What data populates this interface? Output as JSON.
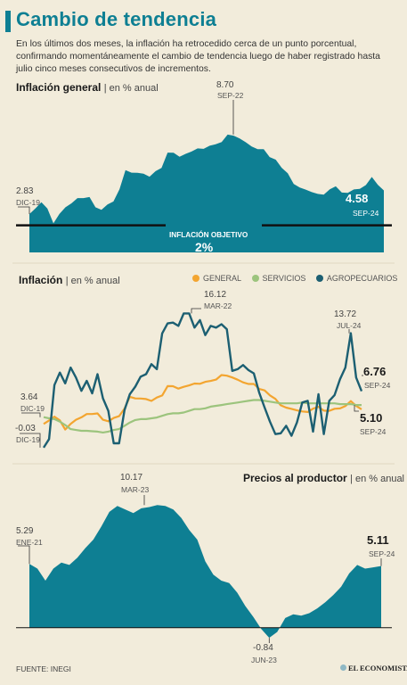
{
  "header": {
    "title": "Cambio de tendencia",
    "intro": "En los últimos dos meses, la inflación ha retrocedido cerca de un punto porcentual, confirmando momentáneamente el cambio de tendencia luego de haber registrado hasta julio cinco meses consecutivos de incrementos."
  },
  "chart1": {
    "title": "Inflación general",
    "unit": "| en % anual",
    "target_label": "INFLACIÓN OBJETIVO",
    "target_value": "2%",
    "annotations": {
      "start_value": "2.83",
      "start_date": "DIC-19",
      "peak_value": "8.70",
      "peak_date": "SEP-22",
      "last_value": "4.58",
      "last_date": "SEP-24"
    }
  },
  "chart2": {
    "title": "Inflación",
    "unit": "| en % anual",
    "legend": [
      "GENERAL",
      "SERVICIOS",
      "AGROPECUARIOS"
    ],
    "annotations": {
      "agro_start_value": "-0.03",
      "agro_start_date": "DIC-19",
      "serv_start_value": "3.64",
      "serv_start_date": "DIC-19",
      "agro_peak_value": "16.12",
      "agro_peak_date": "MAR-22",
      "agro_jul_value": "13.72",
      "agro_jul_date": "JUL-24",
      "agro_last_value": "6.76",
      "agro_last_date": "SEP-24",
      "serv_last_value": "5.10",
      "serv_last_date": "SEP-24"
    }
  },
  "chart3": {
    "title": "Precios al productor",
    "unit": "| en % anual",
    "annotations": {
      "start_value": "5.29",
      "start_date": "ENE-21",
      "peak_value": "10.17",
      "peak_date": "MAR-23",
      "min_value": "-0.84",
      "min_date": "JUN-23",
      "last_value": "5.11",
      "last_date": "SEP-24"
    }
  },
  "footer": {
    "source": "FUENTE: INEGI",
    "brand": "EL ECONOMISTA"
  },
  "colors": {
    "teal": "#0e7f93",
    "dark_teal": "#1c5f72",
    "orange": "#f3a530",
    "green": "#9cc47d",
    "background": "#f2ecdb"
  },
  "chart_data": [
    {
      "type": "area",
      "title": "Inflación general",
      "ylabel": "en % anual",
      "reference_line": {
        "label": "INFLACIÓN OBJETIVO",
        "value": 2
      },
      "x_start": "DIC-19",
      "x_end": "SEP-24",
      "series": [
        {
          "name": "Inflación general",
          "values": [
            2.83,
            3.24,
            3.7,
            3.25,
            2.15,
            2.84,
            3.33,
            3.62,
            4.01,
            4.01,
            4.09,
            3.33,
            3.15,
            3.54,
            3.76,
            4.67,
            6.08,
            5.89,
            5.88,
            5.81,
            5.59,
            6.0,
            6.24,
            7.37,
            7.36,
            7.07,
            7.28,
            7.45,
            7.68,
            7.65,
            7.88,
            7.99,
            8.15,
            8.7,
            8.62,
            8.41,
            8.14,
            7.82,
            7.62,
            7.62,
            7.04,
            6.85,
            6.25,
            5.84,
            5.06,
            4.79,
            4.64,
            4.45,
            4.32,
            4.26,
            4.66,
            4.88,
            4.42,
            4.4,
            4.65,
            4.69,
            4.97,
            5.57,
            4.99,
            4.58
          ]
        }
      ],
      "ylim": [
        0,
        11
      ]
    },
    {
      "type": "line",
      "title": "Inflación",
      "ylabel": "en % anual",
      "x_start": "DIC-19",
      "x_end": "SEP-24",
      "series": [
        {
          "name": "GENERAL",
          "values": [
            2.83,
            3.24,
            3.7,
            3.25,
            2.15,
            2.84,
            3.33,
            3.62,
            4.01,
            4.01,
            4.09,
            3.33,
            3.15,
            3.54,
            3.76,
            4.67,
            6.08,
            5.89,
            5.88,
            5.81,
            5.59,
            6.0,
            6.24,
            7.37,
            7.36,
            7.07,
            7.28,
            7.45,
            7.68,
            7.65,
            7.88,
            7.99,
            8.15,
            8.7,
            8.62,
            8.41,
            8.14,
            7.82,
            7.62,
            7.62,
            7.04,
            6.85,
            6.25,
            5.84,
            5.06,
            4.79,
            4.64,
            4.45,
            4.32,
            4.26,
            4.66,
            4.88,
            4.42,
            4.4,
            4.65,
            4.69,
            4.97,
            5.57,
            4.99,
            4.58
          ]
        },
        {
          "name": "SERVICIOS",
          "values": [
            3.64,
            3.5,
            3.4,
            3.1,
            2.7,
            2.2,
            2.1,
            2.0,
            2.0,
            1.95,
            1.9,
            1.8,
            1.9,
            2.1,
            2.2,
            2.6,
            3.0,
            3.3,
            3.4,
            3.4,
            3.5,
            3.6,
            3.8,
            4.0,
            4.1,
            4.1,
            4.2,
            4.4,
            4.6,
            4.6,
            4.7,
            4.9,
            5.0,
            5.1,
            5.2,
            5.3,
            5.4,
            5.5,
            5.6,
            5.7,
            5.7,
            5.6,
            5.5,
            5.4,
            5.3,
            5.3,
            5.3,
            5.3,
            5.4,
            5.3,
            5.3,
            5.3,
            5.3,
            5.3,
            5.3,
            5.2,
            5.2,
            5.2,
            5.1,
            5.1
          ]
        },
        {
          "name": "AGROPECUARIOS",
          "values": [
            -0.03,
            1.0,
            7.5,
            9.0,
            7.7,
            9.6,
            8.4,
            6.8,
            8.0,
            6.5,
            8.8,
            5.9,
            4.4,
            0.5,
            0.5,
            4.5,
            6.4,
            7.3,
            8.5,
            8.8,
            10.0,
            9.4,
            13.7,
            14.9,
            15.0,
            14.6,
            16.1,
            16.1,
            14.4,
            15.3,
            13.5,
            14.6,
            14.4,
            14.8,
            14.2,
            9.2,
            9.4,
            9.9,
            9.3,
            8.9,
            6.6,
            4.8,
            3.1,
            1.6,
            1.7,
            2.6,
            1.4,
            3.0,
            5.4,
            5.6,
            1.9,
            6.4,
            1.6,
            5.6,
            6.3,
            8.2,
            9.6,
            13.72,
            8.4,
            6.76
          ]
        }
      ],
      "ylim": [
        -1,
        17
      ]
    },
    {
      "type": "area",
      "title": "Precios al productor",
      "ylabel": "en % anual",
      "x_start": "ENE-21",
      "x_end": "SEP-24",
      "series": [
        {
          "name": "Precios al productor",
          "values": [
            5.29,
            4.9,
            3.9,
            4.9,
            5.4,
            5.2,
            5.8,
            6.6,
            7.3,
            8.4,
            9.6,
            10.1,
            9.8,
            9.5,
            9.9,
            10.0,
            10.17,
            10.1,
            9.8,
            9.1,
            8.1,
            7.3,
            5.5,
            4.4,
            3.9,
            3.7,
            2.9,
            1.8,
            0.9,
            -0.1,
            -0.84,
            -0.35,
            0.8,
            1.1,
            1.0,
            1.2,
            1.6,
            2.1,
            2.7,
            3.4,
            4.5,
            5.2,
            4.9,
            5.0,
            5.11
          ]
        }
      ],
      "ylim": [
        -1.5,
        11
      ]
    }
  ]
}
